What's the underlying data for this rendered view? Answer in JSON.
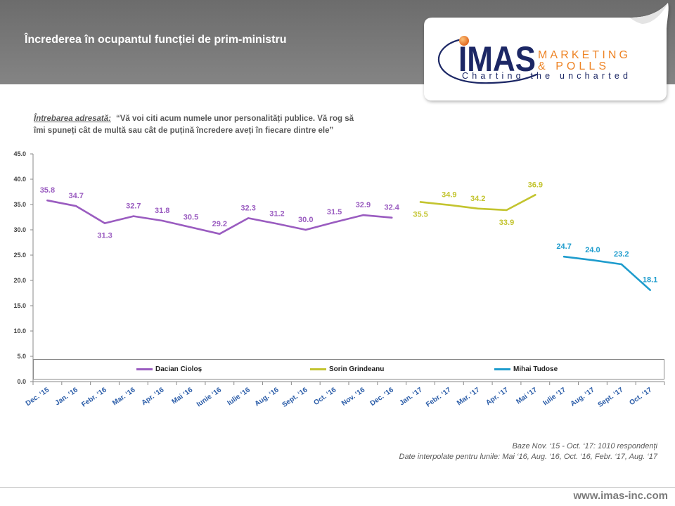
{
  "header": {
    "logo": {
      "brand": "IMAS",
      "line1": "MARKETING",
      "line2": "& POLLS",
      "tagline": "Charting the uncharted",
      "navy": "#1c2765",
      "orange": "#ee8426"
    }
  },
  "question": {
    "label": "Întrebarea adresată:",
    "text_line1": "“Vă voi citi acum numele unor personalități publice. Vă rog să",
    "text_line2": "îmi spuneți cât de multă sau cât de puțină încredere aveți în fiecare dintre ele”"
  },
  "notes": {
    "base": "Baze Nov. ‘15 - Oct. ‘17: 1010 respondenți",
    "interpolation": "Date interpolate pentru lunile: Mai ‘16, Aug. ‘16, Oct. ‘16, Febr. ‘17, Aug. ‘17"
  },
  "footer": {
    "website": "www.imas-inc.com"
  },
  "chart_data": {
    "type": "line",
    "title": "Încrederea în ocupantul funcției de prim-ministru",
    "xlabel": "",
    "ylabel": "",
    "ylim": [
      0,
      45
    ],
    "yticks": [
      0,
      5,
      10,
      15,
      20,
      25,
      30,
      35,
      40,
      45
    ],
    "legend": "bottom",
    "categories": [
      "Dec. ‘15",
      "Jan. ‘16",
      "Febr. ‘16",
      "Mar. ‘16",
      "Apr. ‘16",
      "Mai ‘16",
      "Iunie ‘16",
      "Iulie ‘16",
      "Aug. ‘16",
      "Sept. ‘16",
      "Oct. ‘16",
      "Nov. ‘16",
      "Dec. ‘16",
      "Jan. ‘17",
      "Febr. ‘17",
      "Mar. ‘17",
      "Apr. ‘17",
      "Mai ‘17",
      "Iulie ‘17",
      "Aug. ‘17",
      "Sept. ‘17",
      "Oct. ‘17"
    ],
    "series": [
      {
        "name": "Dacian Cioloș",
        "color": "#9a5cc0",
        "values": [
          35.8,
          34.7,
          31.3,
          32.7,
          31.8,
          30.5,
          29.2,
          32.3,
          31.2,
          30.0,
          31.5,
          32.9,
          32.4,
          null,
          null,
          null,
          null,
          null,
          null,
          null,
          null,
          null
        ]
      },
      {
        "name": "Sorin Grindeanu",
        "color": "#c3c42f",
        "values": [
          null,
          null,
          null,
          null,
          null,
          null,
          null,
          null,
          null,
          null,
          null,
          null,
          null,
          35.5,
          34.9,
          34.2,
          33.9,
          36.9,
          null,
          null,
          null,
          null
        ]
      },
      {
        "name": "Mihai Tudose",
        "color": "#1e9ccd",
        "values": [
          null,
          null,
          null,
          null,
          null,
          null,
          null,
          null,
          null,
          null,
          null,
          null,
          null,
          null,
          null,
          null,
          null,
          null,
          24.7,
          24.0,
          23.2,
          18.1
        ]
      }
    ]
  }
}
